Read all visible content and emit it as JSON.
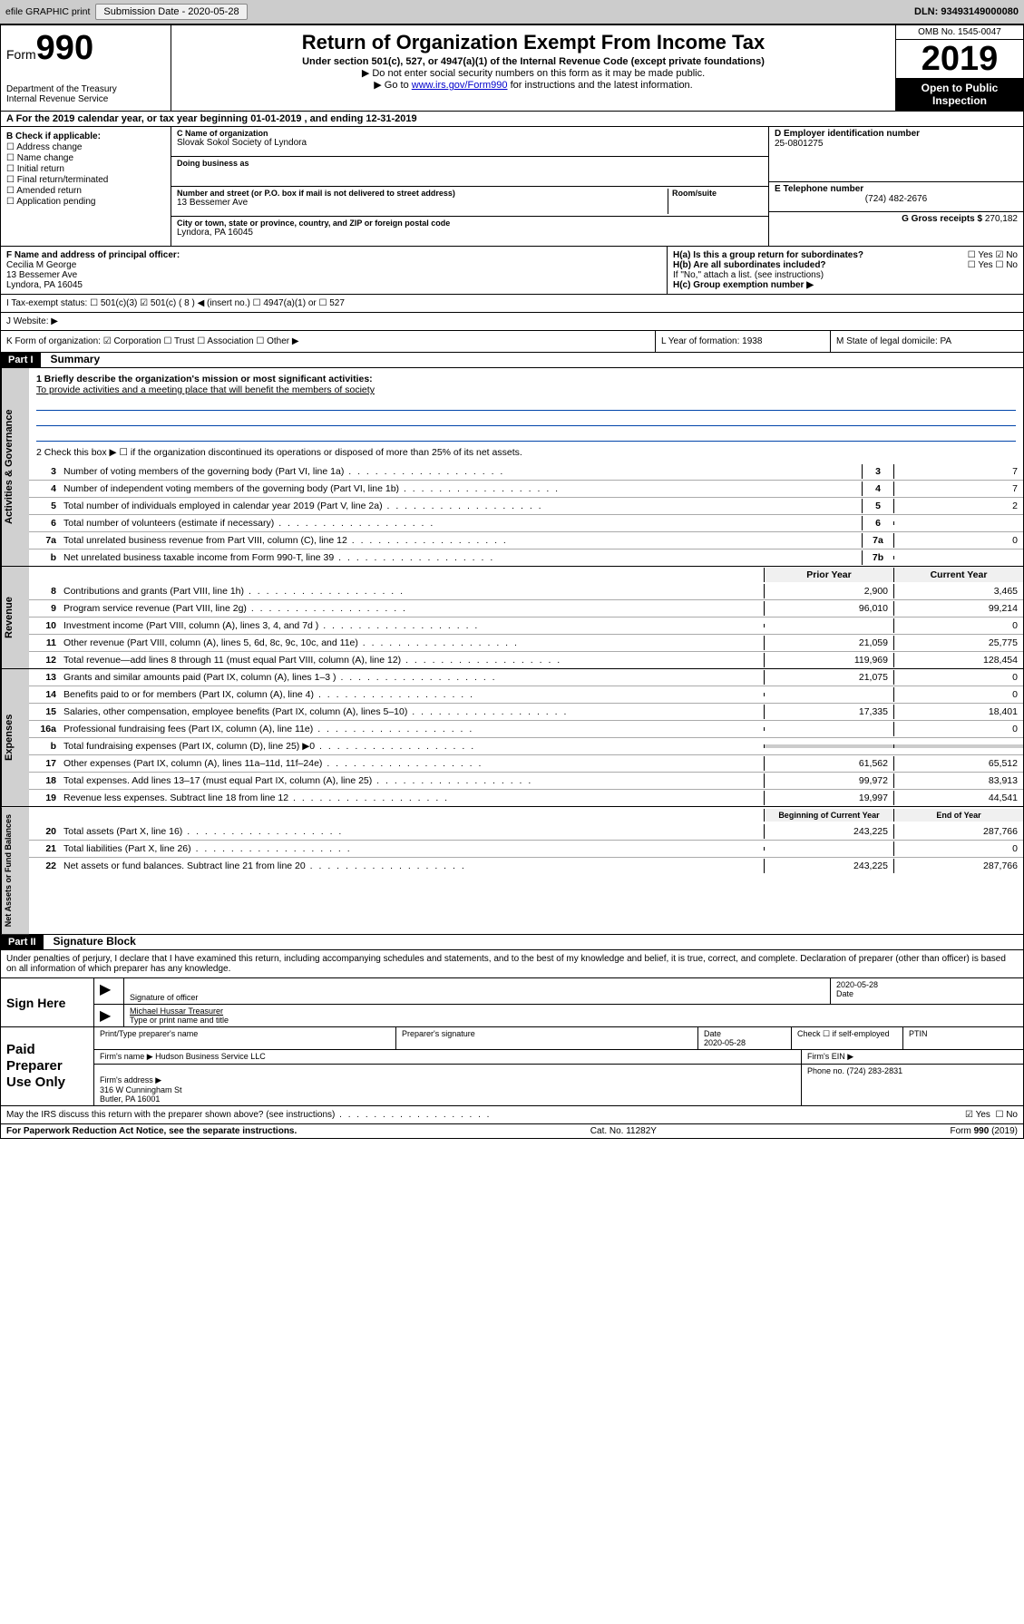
{
  "topbar": {
    "efile": "efile GRAPHIC print",
    "submission_label": "Submission Date - 2020-05-28",
    "dln": "DLN: 93493149000080"
  },
  "header": {
    "form_small": "Form",
    "form_big": "990",
    "title": "Return of Organization Exempt From Income Tax",
    "subtitle": "Under section 501(c), 527, or 4947(a)(1) of the Internal Revenue Code (except private foundations)",
    "note1": "▶ Do not enter social security numbers on this form as it may be made public.",
    "note2_pre": "▶ Go to ",
    "note2_link": "www.irs.gov/Form990",
    "note2_post": " for instructions and the latest information.",
    "dept": "Department of the Treasury\nInternal Revenue Service",
    "omb": "OMB No. 1545-0047",
    "year": "2019",
    "open": "Open to Public Inspection"
  },
  "row_a": "A For the 2019 calendar year, or tax year beginning 01-01-2019   , and ending 12-31-2019",
  "section_b": {
    "label": "B Check if applicable:",
    "items": [
      "☐ Address change",
      "☐ Name change",
      "☐ Initial return",
      "☐ Final return/terminated",
      "☐ Amended return",
      "☐ Application pending"
    ]
  },
  "section_c": {
    "name_label": "C Name of organization",
    "name": "Slovak Sokol Society of Lyndora",
    "dba_label": "Doing business as",
    "dba": "",
    "addr_label": "Number and street (or P.O. box if mail is not delivered to street address)",
    "room_label": "Room/suite",
    "addr": "13 Bessemer Ave",
    "city_label": "City or town, state or province, country, and ZIP or foreign postal code",
    "city": "Lyndora, PA  16045"
  },
  "section_d": {
    "label": "D Employer identification number",
    "value": "25-0801275"
  },
  "section_e": {
    "label": "E Telephone number",
    "value": "(724) 482-2676"
  },
  "section_g": {
    "label": "G Gross receipts $",
    "value": "270,182"
  },
  "section_f": {
    "label": "F  Name and address of principal officer:",
    "name": "Cecilia M George",
    "addr1": "13 Bessemer Ave",
    "addr2": "Lyndora, PA  16045"
  },
  "section_h": {
    "ha": "H(a)  Is this a group return for subordinates?",
    "ha_yes": "☐ Yes",
    "ha_no": "☑ No",
    "hb": "H(b)  Are all subordinates included?",
    "hb_yes": "☐ Yes",
    "hb_no": "☐ No",
    "hb_note": "If \"No,\" attach a list. (see instructions)",
    "hc": "H(c)  Group exemption number ▶"
  },
  "row_i": "I  Tax-exempt status:   ☐ 501(c)(3)   ☑ 501(c) ( 8 ) ◀ (insert no.)   ☐ 4947(a)(1) or   ☐ 527",
  "row_j": "J  Website: ▶",
  "row_k": "K Form of organization:  ☑ Corporation  ☐ Trust  ☐ Association  ☐ Other ▶",
  "row_l": "L Year of formation: 1938",
  "row_m": "M State of legal domicile: PA",
  "part1": {
    "label": "Part I",
    "title": "Summary",
    "vtab1": "Activities & Governance",
    "vtab2": "Revenue",
    "vtab3": "Expenses",
    "vtab4": "Net Assets or Fund Balances",
    "q1": "1  Briefly describe the organization's mission or most significant activities:",
    "mission": "To provide activities and a meeting place that will benefit the members of society",
    "q2": "2  Check this box ▶ ☐  if the organization discontinued its operations or disposed of more than 25% of its net assets.",
    "lines_gov": [
      {
        "n": "3",
        "t": "Number of voting members of the governing body (Part VI, line 1a)",
        "box": "3",
        "v": "7"
      },
      {
        "n": "4",
        "t": "Number of independent voting members of the governing body (Part VI, line 1b)",
        "box": "4",
        "v": "7"
      },
      {
        "n": "5",
        "t": "Total number of individuals employed in calendar year 2019 (Part V, line 2a)",
        "box": "5",
        "v": "2"
      },
      {
        "n": "6",
        "t": "Total number of volunteers (estimate if necessary)",
        "box": "6",
        "v": ""
      },
      {
        "n": "7a",
        "t": "Total unrelated business revenue from Part VIII, column (C), line 12",
        "box": "7a",
        "v": "0"
      },
      {
        "n": "b",
        "t": "Net unrelated business taxable income from Form 990-T, line 39",
        "box": "7b",
        "v": ""
      }
    ],
    "col_prior": "Prior Year",
    "col_current": "Current Year",
    "lines_rev": [
      {
        "n": "8",
        "t": "Contributions and grants (Part VIII, line 1h)",
        "p": "2,900",
        "c": "3,465"
      },
      {
        "n": "9",
        "t": "Program service revenue (Part VIII, line 2g)",
        "p": "96,010",
        "c": "99,214"
      },
      {
        "n": "10",
        "t": "Investment income (Part VIII, column (A), lines 3, 4, and 7d )",
        "p": "",
        "c": "0"
      },
      {
        "n": "11",
        "t": "Other revenue (Part VIII, column (A), lines 5, 6d, 8c, 9c, 10c, and 11e)",
        "p": "21,059",
        "c": "25,775"
      },
      {
        "n": "12",
        "t": "Total revenue—add lines 8 through 11 (must equal Part VIII, column (A), line 12)",
        "p": "119,969",
        "c": "128,454"
      }
    ],
    "lines_exp": [
      {
        "n": "13",
        "t": "Grants and similar amounts paid (Part IX, column (A), lines 1–3 )",
        "p": "21,075",
        "c": "0"
      },
      {
        "n": "14",
        "t": "Benefits paid to or for members (Part IX, column (A), line 4)",
        "p": "",
        "c": "0"
      },
      {
        "n": "15",
        "t": "Salaries, other compensation, employee benefits (Part IX, column (A), lines 5–10)",
        "p": "17,335",
        "c": "18,401"
      },
      {
        "n": "16a",
        "t": "Professional fundraising fees (Part IX, column (A), line 11e)",
        "p": "",
        "c": "0"
      },
      {
        "n": "b",
        "t": "Total fundraising expenses (Part IX, column (D), line 25) ▶0",
        "p": "__gray__",
        "c": "__gray__"
      },
      {
        "n": "17",
        "t": "Other expenses (Part IX, column (A), lines 11a–11d, 11f–24e)",
        "p": "61,562",
        "c": "65,512"
      },
      {
        "n": "18",
        "t": "Total expenses. Add lines 13–17 (must equal Part IX, column (A), line 25)",
        "p": "99,972",
        "c": "83,913"
      },
      {
        "n": "19",
        "t": "Revenue less expenses. Subtract line 18 from line 12",
        "p": "19,997",
        "c": "44,541"
      }
    ],
    "col_boy": "Beginning of Current Year",
    "col_eoy": "End of Year",
    "lines_net": [
      {
        "n": "20",
        "t": "Total assets (Part X, line 16)",
        "p": "243,225",
        "c": "287,766"
      },
      {
        "n": "21",
        "t": "Total liabilities (Part X, line 26)",
        "p": "",
        "c": "0"
      },
      {
        "n": "22",
        "t": "Net assets or fund balances. Subtract line 21 from line 20",
        "p": "243,225",
        "c": "287,766"
      }
    ]
  },
  "part2": {
    "label": "Part II",
    "title": "Signature Block",
    "perjury": "Under penalties of perjury, I declare that I have examined this return, including accompanying schedules and statements, and to the best of my knowledge and belief, it is true, correct, and complete. Declaration of preparer (other than officer) is based on all information of which preparer has any knowledge.",
    "sign_here": "Sign Here",
    "sig_officer": "Signature of officer",
    "sig_date": "2020-05-28",
    "date_label": "Date",
    "name_title": "Michael Hussar  Treasurer",
    "name_title_label": "Type or print name and title",
    "paid": "Paid Preparer Use Only",
    "prep_name_label": "Print/Type preparer's name",
    "prep_sig_label": "Preparer's signature",
    "prep_date_label": "Date",
    "prep_date": "2020-05-28",
    "check_self": "Check ☐ if self-employed",
    "ptin": "PTIN",
    "firm_name_label": "Firm's name    ▶",
    "firm_name": "Hudson Business Service LLC",
    "firm_ein": "Firm's EIN ▶",
    "firm_addr_label": "Firm's address ▶",
    "firm_addr": "316 W Cunningham St\nButler, PA  16001",
    "firm_phone": "Phone no. (724) 283-2831",
    "discuss": "May the IRS discuss this return with the preparer shown above? (see instructions)",
    "discuss_yes": "☑ Yes",
    "discuss_no": "☐ No"
  },
  "footer": {
    "left": "For Paperwork Reduction Act Notice, see the separate instructions.",
    "mid": "Cat. No. 11282Y",
    "right": "Form 990 (2019)"
  },
  "colors": {
    "background": "#ffffff",
    "text": "#000000",
    "header_black": "#000000",
    "gray_bar": "#cccccc",
    "vtab_bg": "#d0d0d0",
    "link": "#0000cc",
    "rule_blue": "#0044aa"
  }
}
